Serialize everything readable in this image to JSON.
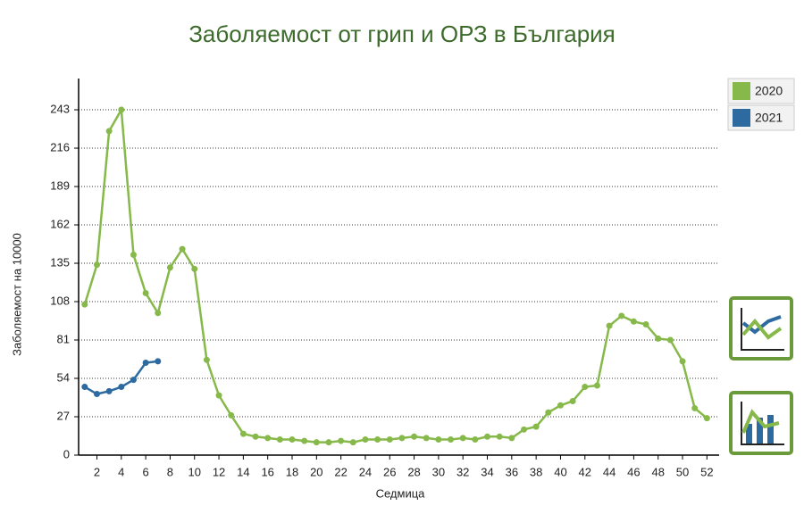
{
  "chart_data": {
    "type": "line",
    "title": "Заболяемост от грип и ОРЗ в България",
    "x_label": "Седмица",
    "y_label": "Заболяемост на 10000",
    "x": [
      1,
      2,
      3,
      4,
      5,
      6,
      7,
      8,
      9,
      10,
      11,
      12,
      13,
      14,
      15,
      16,
      17,
      18,
      19,
      20,
      21,
      22,
      23,
      24,
      25,
      26,
      27,
      28,
      29,
      30,
      31,
      32,
      33,
      34,
      35,
      36,
      37,
      38,
      39,
      40,
      41,
      42,
      43,
      44,
      45,
      46,
      47,
      48,
      49,
      50,
      51,
      52
    ],
    "series": [
      {
        "name": "2020",
        "color": "#86b94a",
        "values": [
          106,
          134,
          228,
          243,
          141,
          114,
          100,
          132,
          145,
          131,
          67,
          42,
          28,
          15,
          13,
          12,
          11,
          11,
          10,
          9,
          9,
          10,
          9,
          11,
          11,
          11,
          12,
          13,
          12,
          11,
          11,
          12,
          11,
          13,
          13,
          12,
          18,
          20,
          30,
          35,
          38,
          48,
          49,
          91,
          98,
          94,
          92,
          82,
          81,
          66,
          33,
          26
        ]
      },
      {
        "name": "2021",
        "color": "#2d6aa0",
        "values": [
          48,
          43,
          45,
          48,
          53,
          65,
          66,
          null,
          null,
          null,
          null,
          null,
          null,
          null,
          null,
          null,
          null,
          null,
          null,
          null,
          null,
          null,
          null,
          null,
          null,
          null,
          null,
          null,
          null,
          null,
          null,
          null,
          null,
          null,
          null,
          null,
          null,
          null,
          null,
          null,
          null,
          null,
          null,
          null,
          null,
          null,
          null,
          null,
          null,
          null,
          null,
          null
        ]
      }
    ],
    "xlim": [
      0.5,
      53
    ],
    "xticks": [
      2,
      4,
      6,
      8,
      10,
      12,
      14,
      16,
      18,
      20,
      22,
      24,
      26,
      28,
      30,
      32,
      34,
      36,
      38,
      40,
      42,
      44,
      46,
      48,
      50,
      52
    ],
    "ylim": [
      0,
      265
    ],
    "yticks": [
      0,
      27,
      54,
      81,
      108,
      135,
      162,
      189,
      216,
      243
    ],
    "grid": true,
    "legend": "top-right"
  }
}
